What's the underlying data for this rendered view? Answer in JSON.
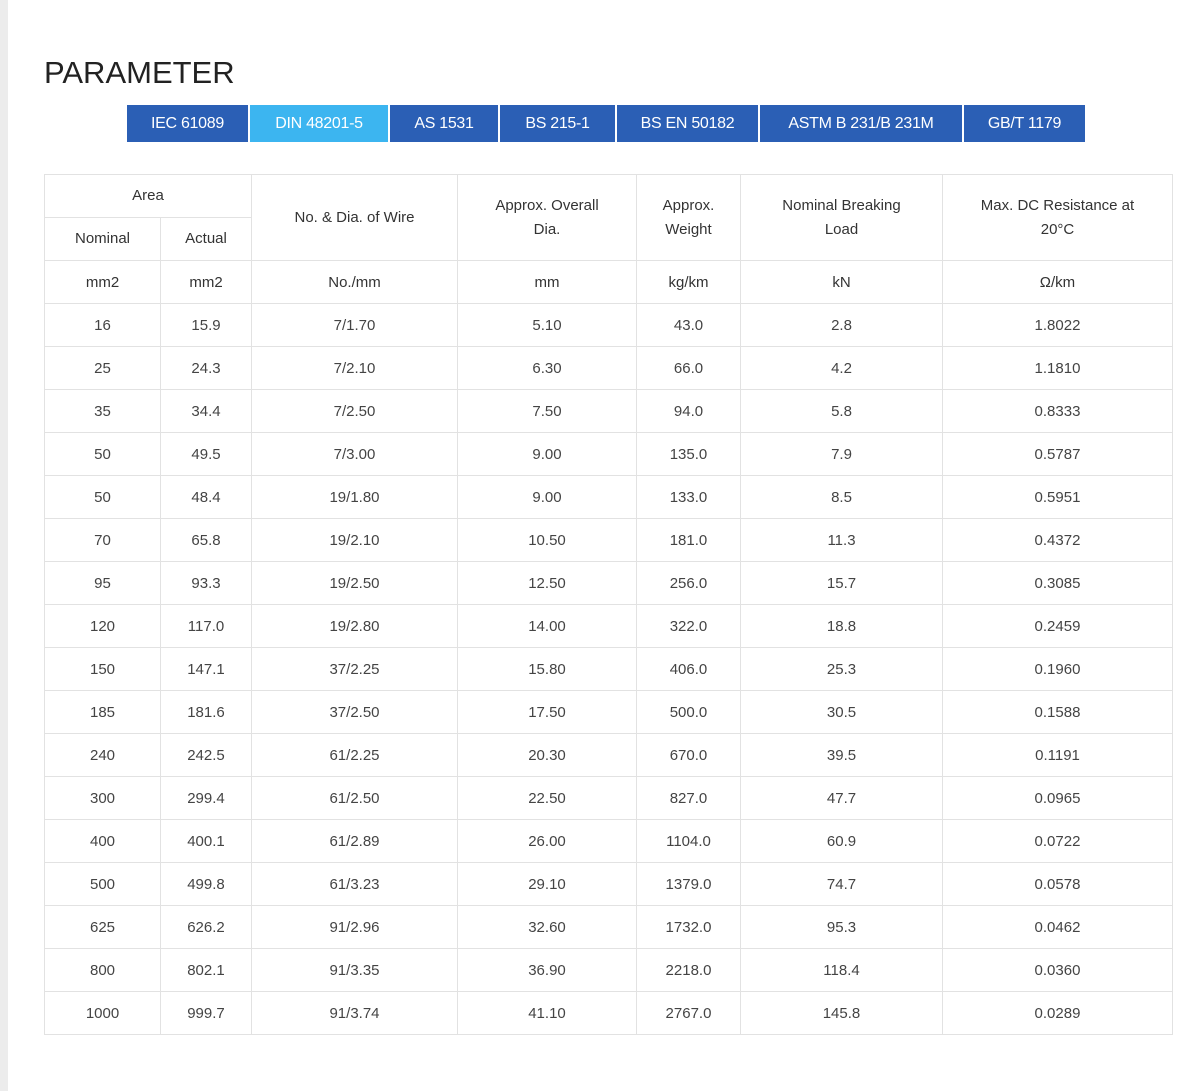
{
  "page_title": "PARAMETER",
  "tabs": [
    {
      "label": "IEC 61089",
      "active": false
    },
    {
      "label": "DIN 48201-5",
      "active": true
    },
    {
      "label": "AS 1531",
      "active": false
    },
    {
      "label": "BS 215-1",
      "active": false
    },
    {
      "label": "BS EN 50182",
      "active": false
    },
    {
      "label": "ASTM B 231/B 231M",
      "active": false
    },
    {
      "label": "GB/T 1179",
      "active": false
    }
  ],
  "colors": {
    "tab": "#2b5fb5",
    "tab_active": "#3cb5f0"
  },
  "table": {
    "headers": {
      "area": "Area",
      "nominal": "Nominal",
      "actual": "Actual",
      "wire": "No. & Dia. of Wire",
      "overall_dia": "Approx. Overall Dia.",
      "weight": "Approx. Weight",
      "breaking_load": "Nominal Breaking Load",
      "resistance": "Max. DC Resistance at 20°C"
    },
    "units": [
      "mm2",
      "mm2",
      "No./mm",
      "mm",
      "kg/km",
      "kN",
      "Ω/km"
    ],
    "rows": [
      [
        "16",
        "15.9",
        "7/1.70",
        "5.10",
        "43.0",
        "2.8",
        "1.8022"
      ],
      [
        "25",
        "24.3",
        "7/2.10",
        "6.30",
        "66.0",
        "4.2",
        "1.1810"
      ],
      [
        "35",
        "34.4",
        "7/2.50",
        "7.50",
        "94.0",
        "5.8",
        "0.8333"
      ],
      [
        "50",
        "49.5",
        "7/3.00",
        "9.00",
        "135.0",
        "7.9",
        "0.5787"
      ],
      [
        "50",
        "48.4",
        "19/1.80",
        "9.00",
        "133.0",
        "8.5",
        "0.5951"
      ],
      [
        "70",
        "65.8",
        "19/2.10",
        "10.50",
        "181.0",
        "11.3",
        "0.4372"
      ],
      [
        "95",
        "93.3",
        "19/2.50",
        "12.50",
        "256.0",
        "15.7",
        "0.3085"
      ],
      [
        "120",
        "117.0",
        "19/2.80",
        "14.00",
        "322.0",
        "18.8",
        "0.2459"
      ],
      [
        "150",
        "147.1",
        "37/2.25",
        "15.80",
        "406.0",
        "25.3",
        "0.1960"
      ],
      [
        "185",
        "181.6",
        "37/2.50",
        "17.50",
        "500.0",
        "30.5",
        "0.1588"
      ],
      [
        "240",
        "242.5",
        "61/2.25",
        "20.30",
        "670.0",
        "39.5",
        "0.1191"
      ],
      [
        "300",
        "299.4",
        "61/2.50",
        "22.50",
        "827.0",
        "47.7",
        "0.0965"
      ],
      [
        "400",
        "400.1",
        "61/2.89",
        "26.00",
        "1104.0",
        "60.9",
        "0.0722"
      ],
      [
        "500",
        "499.8",
        "61/3.23",
        "29.10",
        "1379.0",
        "74.7",
        "0.0578"
      ],
      [
        "625",
        "626.2",
        "91/2.96",
        "32.60",
        "1732.0",
        "95.3",
        "0.0462"
      ],
      [
        "800",
        "802.1",
        "91/3.35",
        "36.90",
        "2218.0",
        "118.4",
        "0.0360"
      ],
      [
        "1000",
        "999.7",
        "91/3.74",
        "41.10",
        "2767.0",
        "145.8",
        "0.0289"
      ]
    ]
  }
}
